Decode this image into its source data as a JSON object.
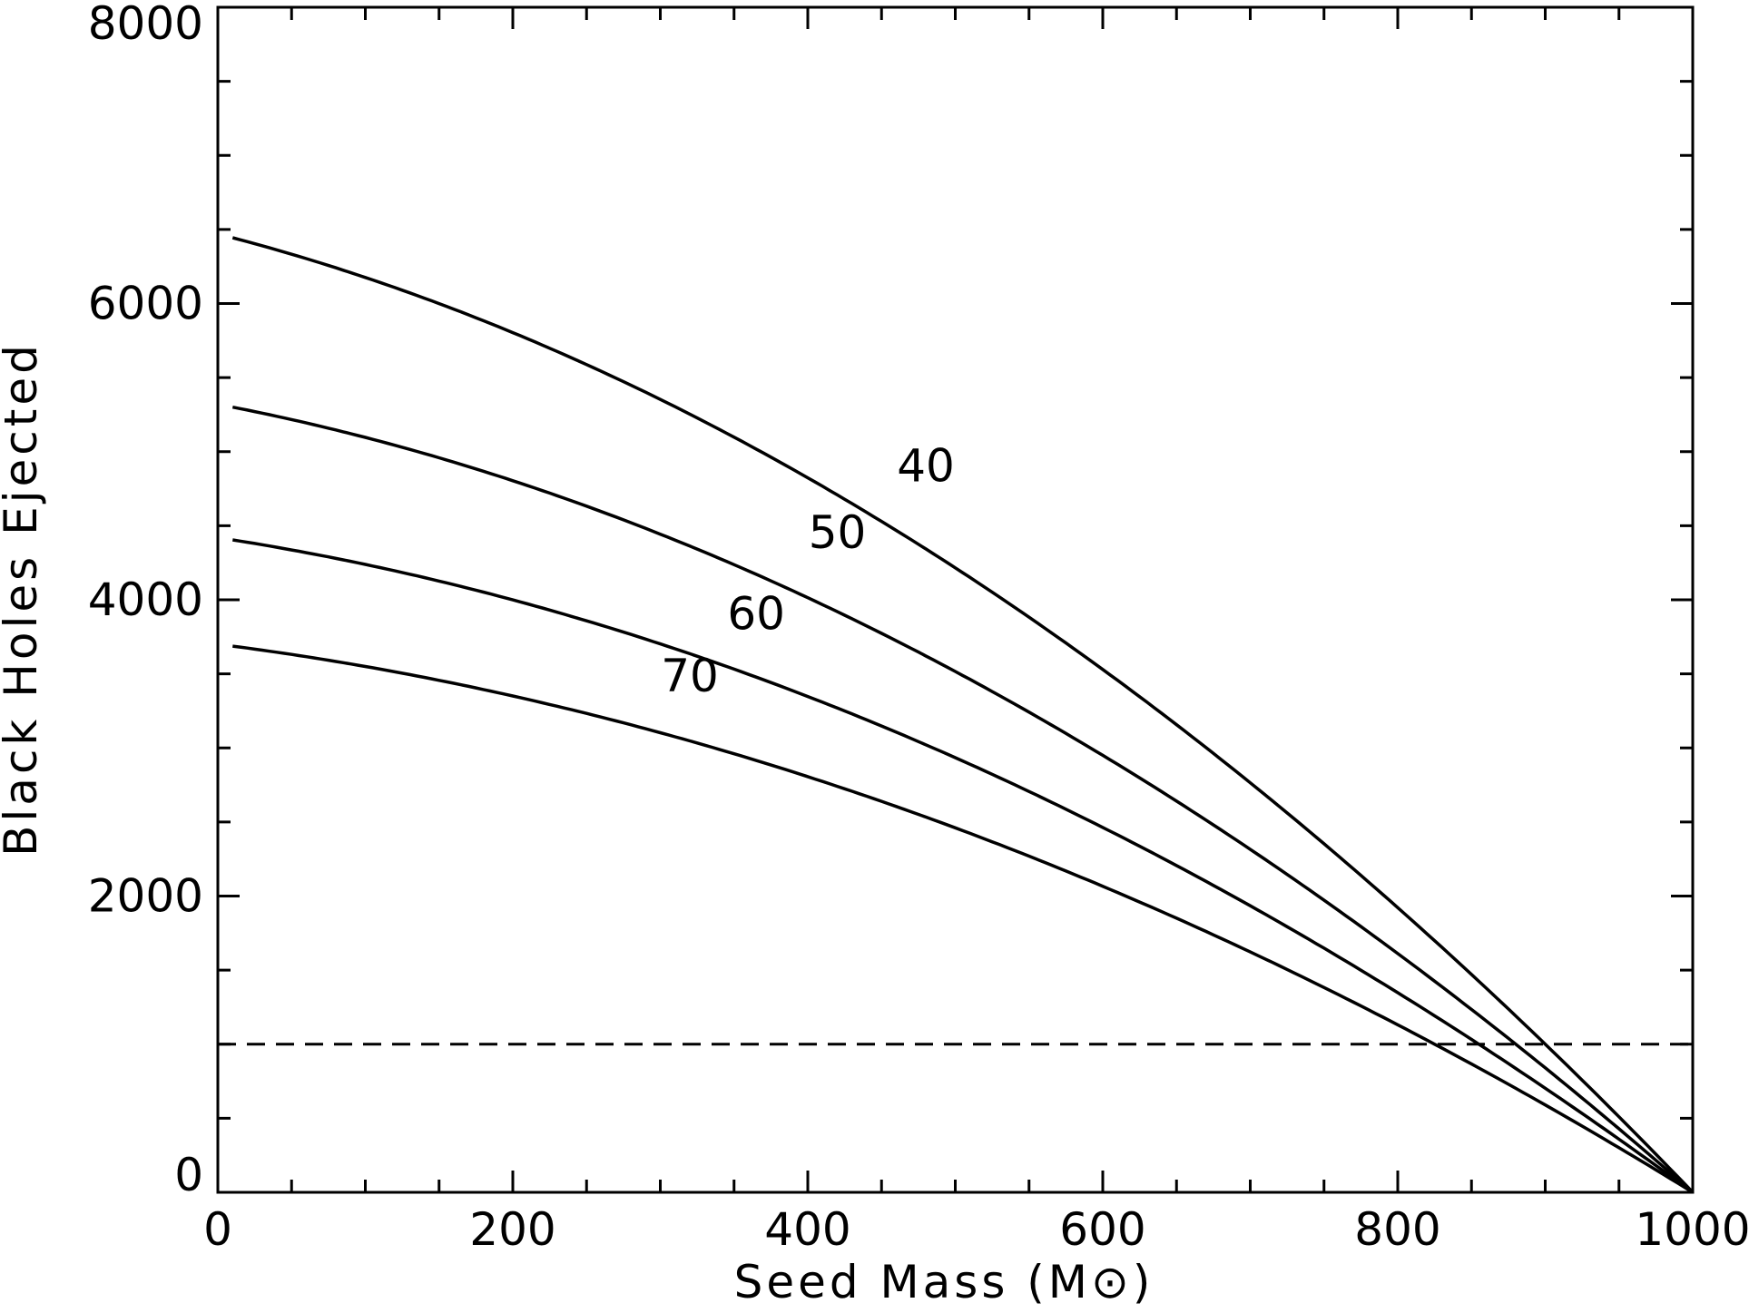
{
  "chart_data": {
    "type": "line",
    "title": "",
    "xlabel": "Seed Mass (M",
    "xlabel_symbol": "⊙",
    "xlabel_close": ")",
    "ylabel": "Black Holes Ejected",
    "xlim": [
      0,
      1000
    ],
    "ylim": [
      0,
      8000
    ],
    "x_ticks": [
      "0",
      "200",
      "400",
      "600",
      "800",
      "1000"
    ],
    "y_ticks": [
      "0",
      "2000",
      "4000",
      "6000",
      "8000"
    ],
    "x_tick_values": [
      0,
      200,
      400,
      600,
      800,
      1000
    ],
    "y_tick_values": [
      0,
      2000,
      4000,
      6000,
      8000
    ],
    "x_minor_step": 50,
    "y_minor_step": 500,
    "grid": false,
    "legend": "none",
    "reference_line": {
      "y": 1000,
      "style": "dashed"
    },
    "series": [
      {
        "label": "40",
        "y0": 6470,
        "x_ref": 900,
        "y_ref": 1000,
        "x_end": 1000,
        "label_x": 480,
        "label_y": 4800
      },
      {
        "label": "50",
        "y0": 5320,
        "x_ref": 880,
        "y_ref": 1000,
        "x_end": 1000,
        "label_x": 420,
        "label_y": 4350
      },
      {
        "label": "60",
        "y0": 4420,
        "x_ref": 855,
        "y_ref": 1000,
        "x_end": 1000,
        "label_x": 365,
        "label_y": 3800
      },
      {
        "label": "70",
        "y0": 3700,
        "x_ref": 825,
        "y_ref": 1000,
        "x_end": 1000,
        "label_x": 320,
        "label_y": 3380
      }
    ]
  }
}
